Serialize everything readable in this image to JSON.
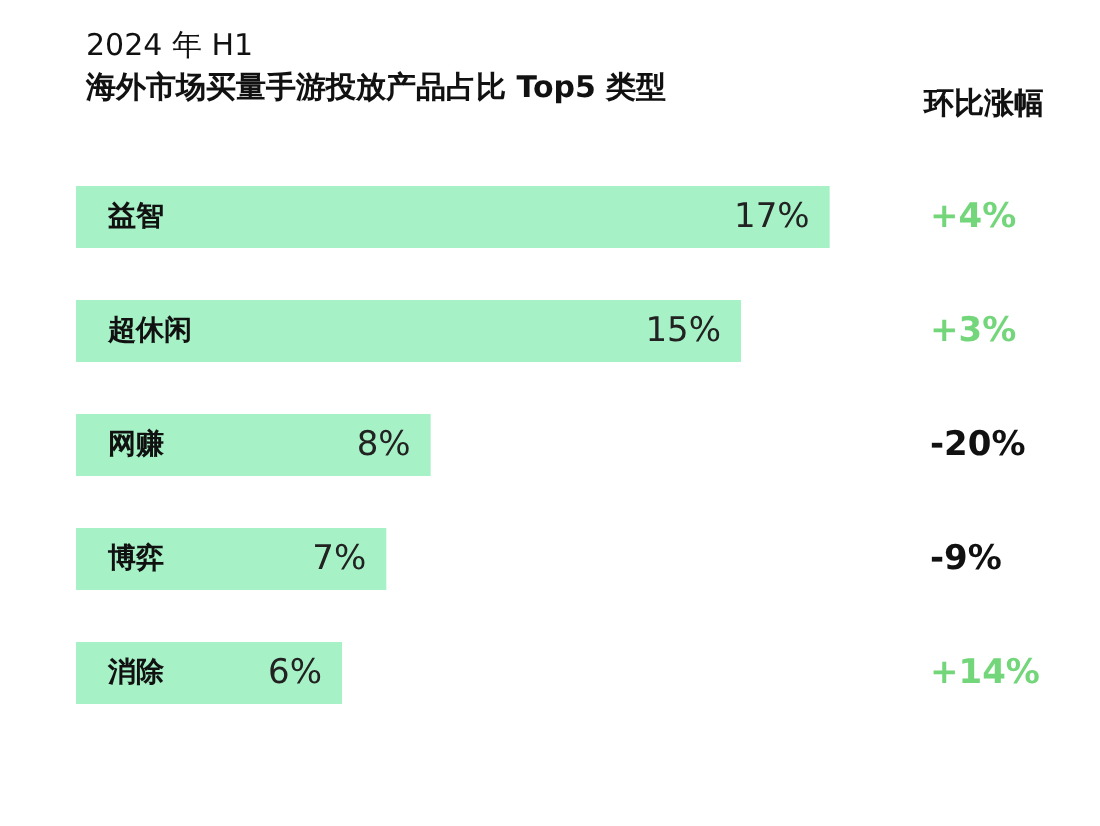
{
  "chart_data": {
    "type": "bar",
    "orientation": "horizontal",
    "title": "2024 年 H1",
    "subtitle": "海外市场买量手游投放产品占比 Top5 类型",
    "categories": [
      "益智",
      "超休闲",
      "网赚",
      "博弈",
      "消除"
    ],
    "values": [
      17,
      15,
      8,
      7,
      6
    ],
    "value_labels": [
      "17%",
      "15%",
      "8%",
      "7%",
      "6%"
    ],
    "color": "#a6f2c6",
    "annotations": [
      "环比涨幅",
      "+4%",
      "+3%",
      "-20%",
      "-9%",
      "+14%"
    ]
  }
}
